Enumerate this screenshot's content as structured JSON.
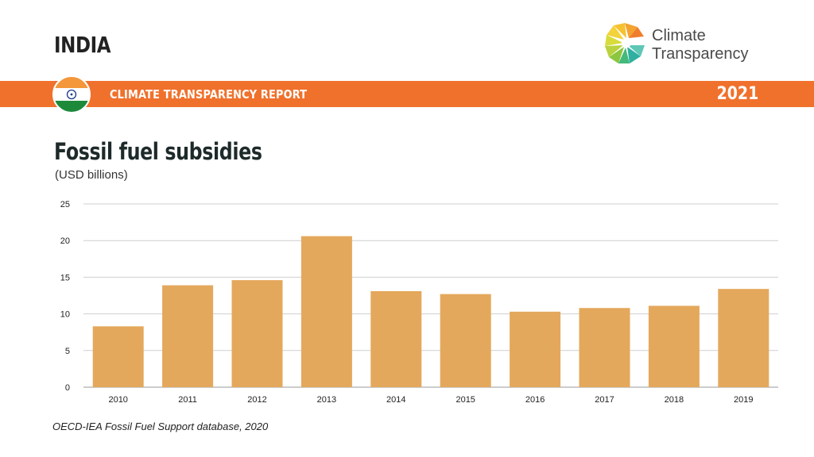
{
  "header": {
    "country": "INDIA",
    "logo_line1": "Climate",
    "logo_line2": "Transparency",
    "report_title": "CLIMATE TRANSPARENCY REPORT",
    "year": "2021"
  },
  "colors": {
    "accent": "#f0712c",
    "bar": "#e4a85c",
    "grid": "#cfcfcf",
    "flag_saffron": "#f4963a",
    "flag_green": "#1d8a3b",
    "chakra": "#1a3a8a"
  },
  "chart_data": {
    "type": "bar",
    "title": "Fossil fuel subsidies",
    "subtitle": "(USD billions)",
    "categories": [
      "2010",
      "2011",
      "2012",
      "2013",
      "2014",
      "2015",
      "2016",
      "2017",
      "2018",
      "2019"
    ],
    "values": [
      8.3,
      13.9,
      14.6,
      20.6,
      13.1,
      12.7,
      10.3,
      10.8,
      11.1,
      13.4
    ],
    "yticks": [
      0,
      5,
      10,
      15,
      20,
      25
    ],
    "ylim": [
      0,
      25
    ],
    "grid": true,
    "legend": "none",
    "xlabel": "",
    "ylabel": ""
  },
  "footer": {
    "source": "OECD-IEA Fossil Fuel Support database, 2020"
  }
}
